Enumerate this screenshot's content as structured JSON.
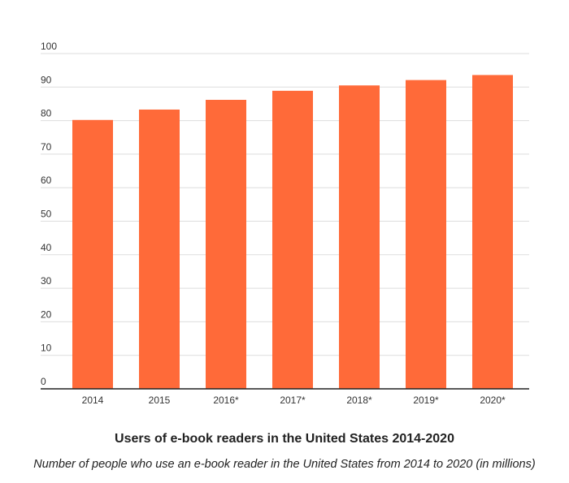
{
  "colors": {
    "bar": "#ff6a39",
    "grid": "#dddddd",
    "axis": "#222222",
    "text": "#333333"
  },
  "chart_data": {
    "type": "bar",
    "categories": [
      "2014",
      "2015",
      "2016*",
      "2017*",
      "2018*",
      "2019*",
      "2020*"
    ],
    "values": [
      80.2,
      83.3,
      86.2,
      88.9,
      90.5,
      92.1,
      93.6
    ],
    "title": "Users of e-book readers in the United States 2014-2020",
    "subtitle": "Number of people who use an e-book reader in the United States from 2014 to 2020 (in millions)",
    "xlabel": "",
    "ylabel": "",
    "ylim": [
      0,
      100
    ],
    "yticks": [
      "0",
      "10",
      "20",
      "30",
      "40",
      "50",
      "60",
      "70",
      "80",
      "90",
      "100"
    ],
    "grid": true,
    "legend": "none"
  }
}
